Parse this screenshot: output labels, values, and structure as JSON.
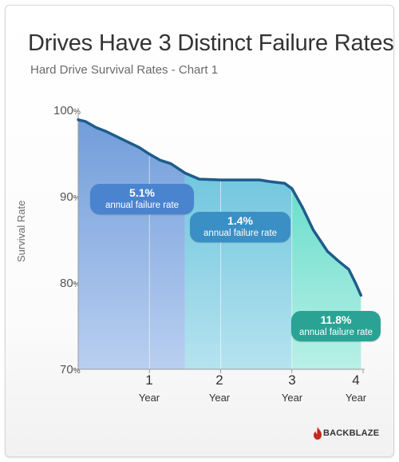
{
  "title": "Drives Have 3 Distinct Failure Rates",
  "subtitle": "Hard Drive Survival Rates - Chart 1",
  "chart_data": {
    "type": "area",
    "title": "Drives Have 3 Distinct Failure Rates",
    "subtitle": "Hard Drive Survival Rates - Chart 1",
    "ylabel": "Survival Rate",
    "xlabel": "",
    "ylim": [
      70,
      100
    ],
    "xlim": [
      0,
      4
    ],
    "y_ticks": [
      {
        "value": 100,
        "num": "100",
        "unit": "%"
      },
      {
        "value": 90,
        "num": "90",
        "unit": "%"
      },
      {
        "value": 80,
        "num": "80",
        "unit": "%"
      },
      {
        "value": 70,
        "num": "70",
        "unit": "%"
      }
    ],
    "x_ticks": [
      {
        "value": 1,
        "num": "1",
        "unit": "Year"
      },
      {
        "value": 2,
        "num": "2",
        "unit": "Year"
      },
      {
        "value": 3,
        "num": "3",
        "unit": "Year"
      },
      {
        "value": 4,
        "num": "4",
        "unit": "Year"
      }
    ],
    "x": [
      0,
      0.1,
      0.25,
      0.4,
      0.55,
      0.7,
      0.85,
      1.0,
      1.15,
      1.3,
      1.5,
      1.7,
      2.0,
      2.3,
      2.55,
      2.7,
      2.9,
      3.0,
      3.15,
      3.3,
      3.5,
      3.65,
      3.8,
      3.9,
      3.97
    ],
    "series": [
      {
        "values": [
          99.0,
          98.8,
          98.1,
          97.6,
          97.0,
          96.4,
          95.8,
          95.0,
          94.3,
          93.9,
          92.8,
          92.1,
          92.0,
          92.0,
          92.0,
          91.8,
          91.6,
          91.0,
          88.8,
          86.2,
          83.7,
          82.6,
          81.6,
          79.9,
          78.6
        ]
      }
    ],
    "regions": [
      {
        "x": [
          0,
          1.5
        ],
        "color": "#7fa6e0",
        "rate": "5.1%",
        "label": "annual failure rate"
      },
      {
        "x": [
          1.5,
          3.0
        ],
        "color": "#6cc7de",
        "rate": "1.4%",
        "label": "annual failure rate"
      },
      {
        "x": [
          3.0,
          4.0
        ],
        "color": "#5edbc8",
        "rate": "11.8%",
        "label": "annual failure rate"
      }
    ],
    "line_color": "#1e5c8c",
    "grid": true
  },
  "logo": {
    "text": "BACKBLAZE",
    "icon": "flame-icon",
    "color": "#c62a1c"
  }
}
